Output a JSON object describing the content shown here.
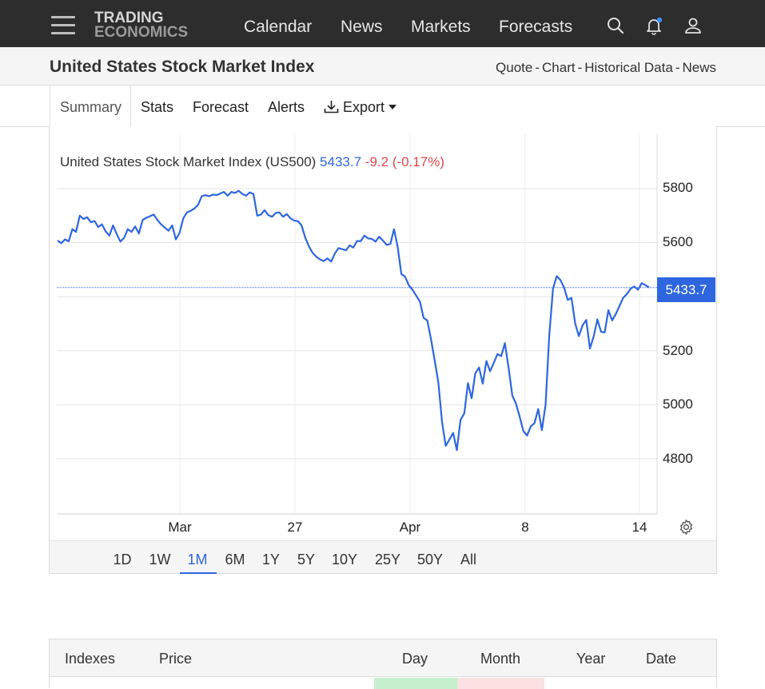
{
  "nav": {
    "logo_line1": "TRADING",
    "logo_line2": "ECONOMICS",
    "links": [
      "Calendar",
      "News",
      "Markets",
      "Forecasts"
    ]
  },
  "header": {
    "title": "United States Stock Market Index",
    "quick_links": [
      "Quote",
      "Chart",
      "Historical Data",
      "News"
    ],
    "separator": "-"
  },
  "tabs": {
    "items": [
      "Summary",
      "Stats",
      "Forecast",
      "Alerts"
    ],
    "active": "Summary",
    "export_label": "Export"
  },
  "quote": {
    "name": "United States Stock Market Index (US500)",
    "price": "5433.7",
    "change": "-9.2 (-0.17%)",
    "last_label": "5433.7",
    "price_color": "#2e66e0",
    "change_color": "#e0474c"
  },
  "chart_data": {
    "type": "line",
    "ylim": [
      4600,
      5950
    ],
    "yticks": [
      4800,
      5000,
      5200,
      5600,
      5800
    ],
    "xticks": [
      "Mar",
      "27",
      "Apr",
      "8",
      "14"
    ],
    "grid": true,
    "last_value": 5433.7,
    "series": [
      {
        "color": "#2e66e0",
        "values": [
          5608,
          5598,
          5612,
          5605,
          5650,
          5640,
          5700,
          5688,
          5694,
          5676,
          5680,
          5658,
          5668,
          5642,
          5626,
          5664,
          5632,
          5604,
          5618,
          5650,
          5640,
          5660,
          5634,
          5684,
          5692,
          5698,
          5704,
          5684,
          5668,
          5656,
          5644,
          5664,
          5612,
          5636,
          5690,
          5712,
          5718,
          5726,
          5740,
          5772,
          5776,
          5772,
          5778,
          5776,
          5782,
          5788,
          5774,
          5788,
          5784,
          5792,
          5780,
          5774,
          5786,
          5780,
          5700,
          5704,
          5720,
          5702,
          5696,
          5710,
          5712,
          5696,
          5706,
          5690,
          5682,
          5680,
          5664,
          5618,
          5586,
          5562,
          5548,
          5538,
          5532,
          5542,
          5530,
          5560,
          5580,
          5576,
          5572,
          5590,
          5582,
          5606,
          5606,
          5626,
          5616,
          5614,
          5604,
          5622,
          5608,
          5592,
          5595,
          5650,
          5584,
          5484,
          5474,
          5442,
          5426,
          5404,
          5382,
          5322,
          5312,
          5244,
          5164,
          5082,
          4936,
          4848,
          4872,
          4896,
          4832,
          4944,
          4968,
          5080,
          5024,
          5116,
          5138,
          5078,
          5162,
          5124,
          5156,
          5188,
          5180,
          5228,
          5136,
          5034,
          5004,
          4956,
          4902,
          4886,
          4920,
          4932,
          4984,
          4906,
          5000,
          5256,
          5430,
          5476,
          5462,
          5434,
          5388,
          5396,
          5302,
          5254,
          5294,
          5314,
          5208,
          5252,
          5316,
          5270,
          5268,
          5350,
          5312,
          5336,
          5366,
          5396,
          5410,
          5430,
          5438,
          5426,
          5450,
          5443,
          5434
        ]
      }
    ]
  },
  "ranges": {
    "items": [
      "1D",
      "1W",
      "1M",
      "6M",
      "1Y",
      "5Y",
      "10Y",
      "25Y",
      "50Y",
      "All"
    ],
    "active": "1M"
  },
  "table": {
    "headers": [
      "Indexes",
      "Price",
      "Day",
      "Month",
      "Year",
      "Date"
    ],
    "day_color": "#c6efce",
    "month_color": "#fbe1e1"
  }
}
